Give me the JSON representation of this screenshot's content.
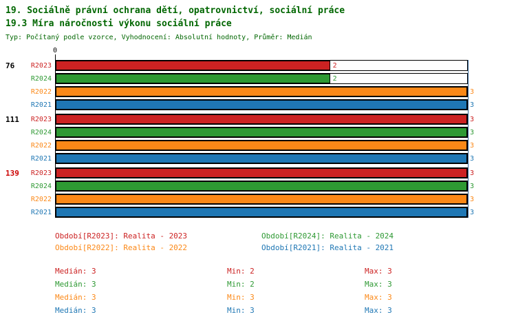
{
  "header": {
    "title_line1": "19. Sociálně právní ochrana dětí, opatrovnictví, sociální práce",
    "title_line2": "19.3 Míra náročnosti výkonu sociální práce",
    "meta_line": "Typ: Počítaný podle vzorce, Vyhodnocení: Absolutní hodnoty, Průměr: Medián"
  },
  "colors": {
    "title_green": "#006600",
    "series_r2023": "#CC2222",
    "series_r2024": "#2E9933",
    "series_r2022": "#FB8817",
    "series_r2021": "#1F77B4",
    "axis_black": "#000000",
    "gridline_max": "#336699",
    "group_label_highlight": "#CC0000",
    "group_label_normal": "#000000"
  },
  "chart_data": {
    "type": "bar",
    "orientation": "horizontal",
    "x_min": 0,
    "x_max": 3,
    "axis_zero_label": "0",
    "series_order": [
      "R2023",
      "R2024",
      "R2022",
      "R2021"
    ],
    "groups": [
      {
        "label": "76",
        "label_color": "#000000",
        "bars": [
          {
            "series": "R2023",
            "value": 2,
            "color": "#CC2222"
          },
          {
            "series": "R2024",
            "value": 2,
            "color": "#2E9933"
          },
          {
            "series": "R2022",
            "value": 3,
            "color": "#FB8817"
          },
          {
            "series": "R2021",
            "value": 3,
            "color": "#1F77B4"
          }
        ]
      },
      {
        "label": "111",
        "label_color": "#000000",
        "bars": [
          {
            "series": "R2023",
            "value": 3,
            "color": "#CC2222"
          },
          {
            "series": "R2024",
            "value": 3,
            "color": "#2E9933"
          },
          {
            "series": "R2022",
            "value": 3,
            "color": "#FB8817"
          },
          {
            "series": "R2021",
            "value": 3,
            "color": "#1F77B4"
          }
        ]
      },
      {
        "label": "139",
        "label_color": "#CC0000",
        "bars": [
          {
            "series": "R2023",
            "value": 3,
            "color": "#CC2222"
          },
          {
            "series": "R2024",
            "value": 3,
            "color": "#2E9933"
          },
          {
            "series": "R2022",
            "value": 3,
            "color": "#FB8817"
          },
          {
            "series": "R2021",
            "value": 3,
            "color": "#1F77B4"
          }
        ]
      }
    ]
  },
  "legend": {
    "items": [
      {
        "text": "Období[R2023]: Realita - 2023",
        "color": "#CC2222"
      },
      {
        "text": "Období[R2024]: Realita - 2024",
        "color": "#2E9933"
      },
      {
        "text": "Období[R2022]: Realita - 2022",
        "color": "#FB8817"
      },
      {
        "text": "Období[R2021]: Realita - 2021",
        "color": "#1F77B4"
      }
    ]
  },
  "stats": {
    "rows": [
      {
        "median": "Medián: 3",
        "min": "Min: 2",
        "max": "Max: 3",
        "color": "#CC2222"
      },
      {
        "median": "Medián: 3",
        "min": "Min: 2",
        "max": "Max: 3",
        "color": "#2E9933"
      },
      {
        "median": "Medián: 3",
        "min": "Min: 3",
        "max": "Max: 3",
        "color": "#FB8817"
      },
      {
        "median": "Medián: 3",
        "min": "Min: 3",
        "max": "Max: 3",
        "color": "#1F77B4"
      }
    ]
  }
}
